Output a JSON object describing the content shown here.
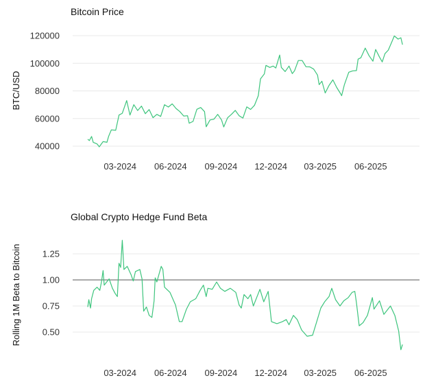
{
  "chart_data": [
    {
      "type": "line",
      "title": "Bitcoin Price",
      "ylabel": "BTC/USD",
      "xlabel": "",
      "ylim": [
        40000,
        120000
      ],
      "yticks": [
        "40000",
        "60000",
        "80000",
        "100000",
        "120000"
      ],
      "xticks": [
        {
          "date": "2024-03-01",
          "label": "03-2024"
        },
        {
          "date": "2024-06-01",
          "label": "06-2024"
        },
        {
          "date": "2024-09-01",
          "label": "09-2024"
        },
        {
          "date": "2024-12-01",
          "label": "12-2024"
        },
        {
          "date": "2025-03-01",
          "label": "03-2025"
        },
        {
          "date": "2025-06-01",
          "label": "06-2025"
        }
      ],
      "grid": true,
      "color": "#3cc47c",
      "x": [
        "2024-01-02",
        "2024-01-05",
        "2024-01-09",
        "2024-01-12",
        "2024-01-19",
        "2024-01-23",
        "2024-01-30",
        "2024-02-06",
        "2024-02-09",
        "2024-02-14",
        "2024-02-22",
        "2024-02-28",
        "2024-03-05",
        "2024-03-13",
        "2024-03-19",
        "2024-03-26",
        "2024-04-02",
        "2024-04-09",
        "2024-04-16",
        "2024-04-23",
        "2024-04-30",
        "2024-05-07",
        "2024-05-14",
        "2024-05-21",
        "2024-05-28",
        "2024-06-04",
        "2024-06-11",
        "2024-06-18",
        "2024-06-25",
        "2024-07-02",
        "2024-07-05",
        "2024-07-12",
        "2024-07-19",
        "2024-07-26",
        "2024-08-02",
        "2024-08-05",
        "2024-08-12",
        "2024-08-19",
        "2024-08-26",
        "2024-09-02",
        "2024-09-06",
        "2024-09-13",
        "2024-09-20",
        "2024-09-27",
        "2024-10-04",
        "2024-10-11",
        "2024-10-18",
        "2024-10-25",
        "2024-11-01",
        "2024-11-08",
        "2024-11-12",
        "2024-11-19",
        "2024-11-22",
        "2024-11-29",
        "2024-12-05",
        "2024-12-10",
        "2024-12-17",
        "2024-12-20",
        "2024-12-27",
        "2025-01-03",
        "2025-01-09",
        "2025-01-13",
        "2025-01-20",
        "2025-01-27",
        "2025-02-03",
        "2025-02-10",
        "2025-02-17",
        "2025-02-24",
        "2025-02-27",
        "2025-03-04",
        "2025-03-10",
        "2025-03-17",
        "2025-03-24",
        "2025-03-31",
        "2025-04-07",
        "2025-04-09",
        "2025-04-14",
        "2025-04-22",
        "2025-04-29",
        "2025-05-06",
        "2025-05-09",
        "2025-05-14",
        "2025-05-22",
        "2025-05-29",
        "2025-06-05",
        "2025-06-10",
        "2025-06-17",
        "2025-06-22",
        "2025-06-27",
        "2025-07-03",
        "2025-07-10",
        "2025-07-14",
        "2025-07-21",
        "2025-07-26",
        "2025-07-29"
      ],
      "values": [
        45000,
        44000,
        47000,
        42800,
        41600,
        39500,
        43300,
        42800,
        47000,
        51800,
        51500,
        62500,
        63800,
        73000,
        62500,
        70000,
        65800,
        69000,
        63500,
        66500,
        60600,
        63000,
        61500,
        70000,
        68300,
        70600,
        67300,
        65000,
        61800,
        62000,
        56600,
        57900,
        66700,
        68000,
        65000,
        54000,
        59000,
        59500,
        63000,
        59000,
        53900,
        60500,
        63000,
        65900,
        62000,
        60300,
        68400,
        66600,
        69500,
        76500,
        88700,
        92300,
        98500,
        97000,
        98000,
        96600,
        106000,
        97000,
        94000,
        98000,
        92500,
        94500,
        102000,
        102000,
        97500,
        97400,
        95800,
        91500,
        84500,
        87000,
        78500,
        84000,
        88000,
        82500,
        78000,
        76500,
        84500,
        93500,
        94500,
        94700,
        103000,
        104000,
        111000,
        105500,
        101500,
        110000,
        104500,
        101000,
        107000,
        109500,
        116000,
        119800,
        117500,
        118500,
        113500
      ]
    },
    {
      "type": "line",
      "title": "Global Crypto Hedge Fund Beta",
      "ylabel": "Rolling 1M Beta to Bitcoin",
      "xlabel": "",
      "ylim": [
        0.3,
        1.4
      ],
      "yticks": [
        "0.50",
        "0.75",
        "1.00",
        "1.25"
      ],
      "reference_line": 1.0,
      "xticks": [
        {
          "date": "2024-03-01",
          "label": "03-2024"
        },
        {
          "date": "2024-06-01",
          "label": "06-2024"
        },
        {
          "date": "2024-09-01",
          "label": "09-2024"
        },
        {
          "date": "2024-12-01",
          "label": "12-2024"
        },
        {
          "date": "2025-03-01",
          "label": "03-2025"
        },
        {
          "date": "2025-06-01",
          "label": "06-2025"
        }
      ],
      "grid": true,
      "color": "#3cc47c",
      "reference_color": "#555555",
      "x": [
        "2024-01-02",
        "2024-01-04",
        "2024-01-07",
        "2024-01-09",
        "2024-01-13",
        "2024-01-19",
        "2024-01-24",
        "2024-01-27",
        "2024-01-30",
        "2024-02-01",
        "2024-02-10",
        "2024-02-16",
        "2024-02-21",
        "2024-02-25",
        "2024-02-28",
        "2024-03-02",
        "2024-03-05",
        "2024-03-08",
        "2024-03-14",
        "2024-03-21",
        "2024-03-25",
        "2024-03-29",
        "2024-04-06",
        "2024-04-10",
        "2024-04-13",
        "2024-04-18",
        "2024-04-23",
        "2024-04-28",
        "2024-05-02",
        "2024-05-04",
        "2024-05-07",
        "2024-05-15",
        "2024-05-18",
        "2024-05-21",
        "2024-05-31",
        "2024-06-10",
        "2024-06-17",
        "2024-06-22",
        "2024-06-30",
        "2024-07-07",
        "2024-07-17",
        "2024-07-25",
        "2024-07-31",
        "2024-08-05",
        "2024-08-08",
        "2024-08-16",
        "2024-08-24",
        "2024-08-31",
        "2024-09-08",
        "2024-09-18",
        "2024-09-28",
        "2024-10-04",
        "2024-10-08",
        "2024-10-13",
        "2024-10-20",
        "2024-10-25",
        "2024-10-30",
        "2024-11-11",
        "2024-11-18",
        "2024-11-26",
        "2024-12-02",
        "2024-12-12",
        "2024-12-22",
        "2024-12-29",
        "2025-01-03",
        "2025-01-11",
        "2025-01-18",
        "2025-01-26",
        "2025-02-05",
        "2025-02-15",
        "2025-02-22",
        "2025-03-02",
        "2025-03-09",
        "2025-03-17",
        "2025-03-22",
        "2025-03-29",
        "2025-04-06",
        "2025-04-13",
        "2025-04-21",
        "2025-04-28",
        "2025-05-03",
        "2025-05-06",
        "2025-05-11",
        "2025-05-18",
        "2025-05-26",
        "2025-06-04",
        "2025-06-07",
        "2025-06-17",
        "2025-06-25",
        "2025-07-07",
        "2025-07-15",
        "2025-07-22",
        "2025-07-26",
        "2025-07-29"
      ],
      "values": [
        0.74,
        0.81,
        0.73,
        0.82,
        0.9,
        0.93,
        0.9,
        0.98,
        1.09,
        0.95,
        1.01,
        0.92,
        0.87,
        0.84,
        1.16,
        1.12,
        1.38,
        1.1,
        1.13,
        1.05,
        0.99,
        1.08,
        1.1,
        1.01,
        0.7,
        0.74,
        0.66,
        0.64,
        0.8,
        1.02,
        0.98,
        1.13,
        1.1,
        0.93,
        0.88,
        0.76,
        0.6,
        0.6,
        0.72,
        0.79,
        0.82,
        0.9,
        0.95,
        0.84,
        0.92,
        0.91,
        0.98,
        0.92,
        0.89,
        0.92,
        0.88,
        0.76,
        0.73,
        0.86,
        0.82,
        0.86,
        0.75,
        0.91,
        0.79,
        0.89,
        0.6,
        0.58,
        0.6,
        0.62,
        0.57,
        0.66,
        0.62,
        0.52,
        0.46,
        0.47,
        0.59,
        0.73,
        0.79,
        0.84,
        0.92,
        0.81,
        0.75,
        0.8,
        0.83,
        0.88,
        0.89,
        0.78,
        0.56,
        0.59,
        0.66,
        0.83,
        0.72,
        0.8,
        0.67,
        0.75,
        0.66,
        0.51,
        0.33,
        0.38
      ]
    }
  ]
}
